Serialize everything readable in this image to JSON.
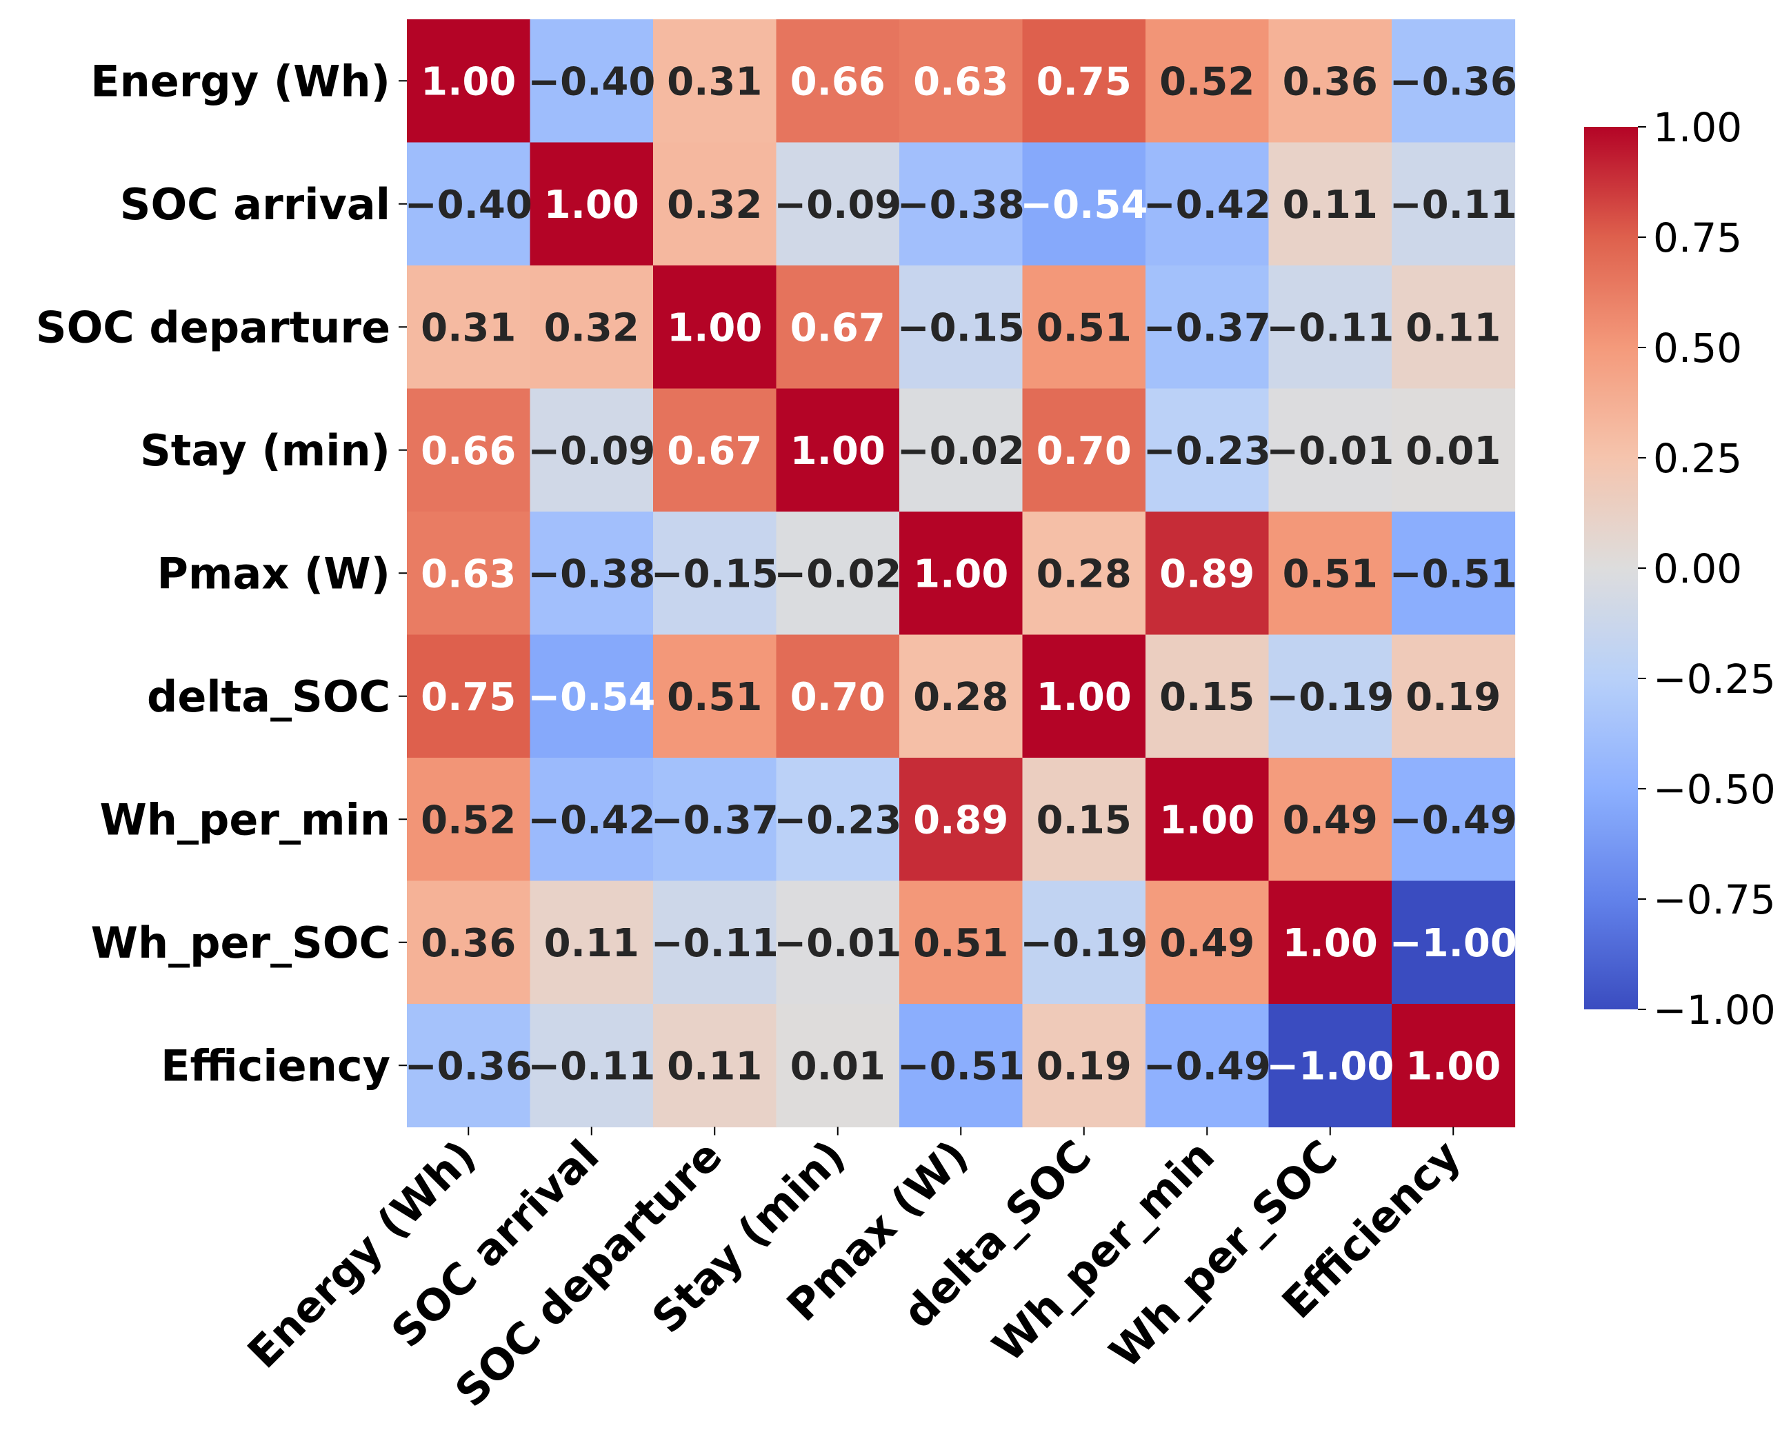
{
  "chart_data": {
    "type": "heatmap",
    "title": "",
    "xlabel": "",
    "ylabel": "",
    "colormap": "coolwarm",
    "value_range": [
      -1.0,
      1.0
    ],
    "variables": [
      "Energy (Wh)",
      "SOC arrival",
      "SOC departure",
      "Stay (min)",
      "Pmax (W)",
      "delta_SOC",
      "Wh_per_min",
      "Wh_per_SOC",
      "Efficiency"
    ],
    "matrix": [
      [
        1.0,
        -0.4,
        0.31,
        0.66,
        0.63,
        0.75,
        0.52,
        0.36,
        -0.36
      ],
      [
        -0.4,
        1.0,
        0.32,
        -0.09,
        -0.38,
        -0.54,
        -0.42,
        0.11,
        -0.11
      ],
      [
        0.31,
        0.32,
        1.0,
        0.67,
        -0.15,
        0.51,
        -0.37,
        -0.11,
        0.11
      ],
      [
        0.66,
        -0.09,
        0.67,
        1.0,
        -0.02,
        0.7,
        -0.23,
        -0.01,
        0.01
      ],
      [
        0.63,
        -0.38,
        -0.15,
        -0.02,
        1.0,
        0.28,
        0.89,
        0.51,
        -0.51
      ],
      [
        0.75,
        -0.54,
        0.51,
        0.7,
        0.28,
        1.0,
        0.15,
        -0.19,
        0.19
      ],
      [
        0.52,
        -0.42,
        -0.37,
        -0.23,
        0.89,
        0.15,
        1.0,
        0.49,
        -0.49
      ],
      [
        0.36,
        0.11,
        -0.11,
        -0.01,
        0.51,
        -0.19,
        0.49,
        1.0,
        -1.0
      ],
      [
        -0.36,
        -0.11,
        0.11,
        0.01,
        -0.51,
        0.19,
        -0.49,
        -1.0,
        1.0
      ]
    ],
    "annotation_format": "0.00",
    "colorbar": {
      "ticks": [
        1.0,
        0.75,
        0.5,
        0.25,
        0.0,
        -0.25,
        -0.5,
        -0.75,
        -1.0
      ],
      "tick_labels": [
        "1.00",
        "0.75",
        "0.50",
        "0.25",
        "0.00",
        "−0.25",
        "−0.50",
        "−0.75",
        "−1.00"
      ]
    }
  }
}
